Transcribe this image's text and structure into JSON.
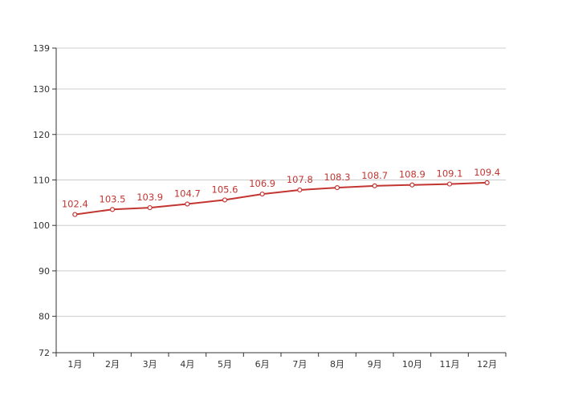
{
  "chart_data": {
    "type": "line",
    "categories": [
      "1月",
      "2月",
      "3月",
      "4月",
      "5月",
      "6月",
      "7月",
      "8月",
      "9月",
      "10月",
      "11月",
      "12月"
    ],
    "series": [
      {
        "values": [
          102.4,
          103.5,
          103.9,
          104.7,
          105.6,
          106.9,
          107.8,
          108.3,
          108.7,
          108.9,
          109.1,
          109.4
        ]
      }
    ],
    "yticks": [
      72,
      80,
      90,
      100,
      110,
      120,
      130,
      139
    ],
    "ylim": [
      72,
      139
    ],
    "grid": true,
    "colors": {
      "line": "#c23531",
      "grid": "#cccccc",
      "axis": "#333333",
      "label_text": "#c23531"
    }
  }
}
